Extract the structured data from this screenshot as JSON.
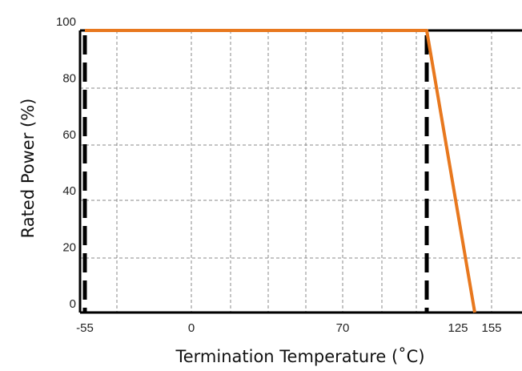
{
  "chart_data": {
    "type": "line",
    "title": "",
    "xlabel": "Termination Temperature (˚C)",
    "ylabel": "Rated Power (%)",
    "x_tick_labels": [
      "-55",
      "0",
      "70",
      "125",
      "155"
    ],
    "y_tick_labels": [
      "0",
      "20",
      "40",
      "60",
      "80",
      "100"
    ],
    "x_tick_values": [
      -55,
      0,
      70,
      125,
      155
    ],
    "y_tick_values": [
      0,
      20,
      40,
      60,
      80,
      100
    ],
    "xlim": [
      -55,
      155
    ],
    "ylim": [
      0,
      100
    ],
    "grid": true,
    "series": [
      {
        "color": "#e8781e",
        "x": [
          -55,
          115,
          140
        ],
        "y": [
          100,
          100,
          0
        ]
      }
    ],
    "limit_lines": [
      -55,
      115
    ]
  }
}
